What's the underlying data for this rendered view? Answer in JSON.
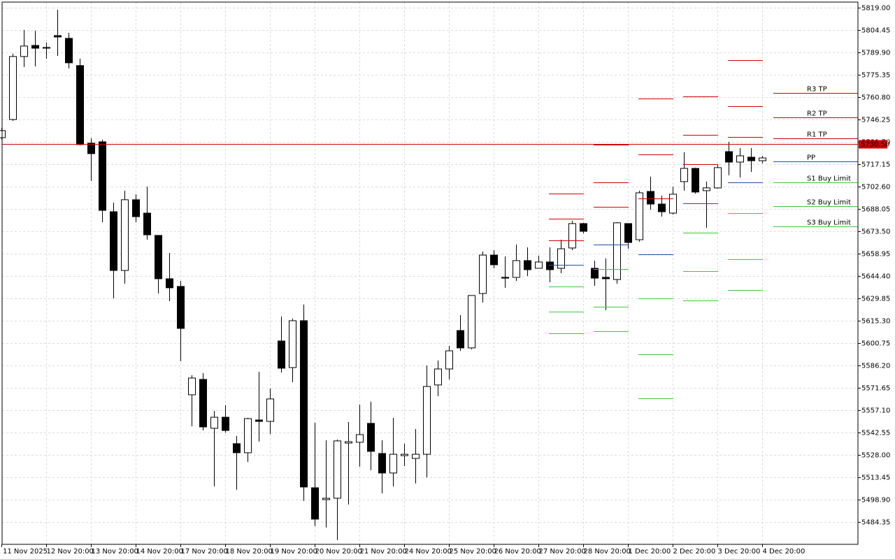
{
  "chart_data": {
    "type": "candlestick",
    "categories": [
      "11 Nov 2025",
      null,
      null,
      null,
      "12 Nov 20:00",
      null,
      null,
      null,
      "13 Nov 20:00",
      null,
      null,
      null,
      "14 Nov 20:00",
      null,
      null,
      null,
      "17 Nov 20:00",
      null,
      null,
      null,
      "18 Nov 20:00",
      null,
      null,
      null,
      "19 Nov 20:00",
      null,
      null,
      null,
      "20 Nov 20:00",
      null,
      null,
      null,
      "21 Nov 20:00",
      null,
      null,
      null,
      "24 Nov 20:00",
      null,
      null,
      null,
      "25 Nov 20:00",
      null,
      null,
      null,
      "26 Nov 20:00",
      null,
      null,
      null,
      "27 Nov 20:00",
      null,
      null,
      null,
      "28 Nov 20:00",
      null,
      null,
      null,
      "1 Dec 20:00",
      null,
      null,
      null,
      "2 Dec 20:00",
      null,
      null,
      null,
      "3 Dec 20:00",
      null,
      null,
      null,
      "4 Dec 20:00"
    ],
    "open": [
      5734.4,
      5746.2,
      5787.2,
      5794.4,
      5792.6,
      5800.8,
      5799.0,
      5781.3,
      5730.8,
      5731.7,
      5686.2,
      5648.0,
      5694.0,
      5685.3,
      5670.8,
      5642.6,
      5637.6,
      5567.1,
      5577.1,
      5545.3,
      5552.5,
      5535.3,
      5529.4,
      5550.7,
      5549.8,
      5602.1,
      5584.8,
      5615.3,
      5506.6,
      5498.9,
      5499.8,
      5535.7,
      5536.2,
      5548.5,
      5528.9,
      5516.2,
      5527.5,
      5525.7,
      5528.4,
      5573.5,
      5583.9,
      5608.9,
      5597.6,
      5633.0,
      5658.0,
      5643.5,
      5643.5,
      5654.4,
      5649.4,
      5653.5,
      5649.4,
      5662.6,
      5678.5,
      5649.4,
      5643.5,
      5642.1,
      5678.5,
      5668.0,
      5699.4,
      5691.2,
      5685.3,
      5705.8,
      5714.4,
      5699.9,
      5701.7,
      5725.3,
      5718.5,
      5721.7,
      5719.4
    ],
    "high": [
      5740.8,
      5789.0,
      5804.4,
      5804.0,
      5796.3,
      5817.6,
      5802.6,
      5785.8,
      5734.0,
      5733.1,
      5692.1,
      5699.9,
      5697.6,
      5702.6,
      5670.8,
      5659.4,
      5641.2,
      5579.8,
      5581.2,
      5556.6,
      5560.3,
      5540.3,
      5552.1,
      5582.1,
      5571.2,
      5618.0,
      5616.7,
      5625.8,
      5548.9,
      5537.5,
      5538.0,
      5549.4,
      5560.7,
      5562.6,
      5537.5,
      5552.1,
      5535.3,
      5544.8,
      5586.2,
      5589.4,
      5598.9,
      5618.9,
      5631.7,
      5660.3,
      5661.2,
      5657.1,
      5664.9,
      5663.0,
      5657.6,
      5663.0,
      5668.0,
      5680.3,
      5679.0,
      5654.4,
      5655.8,
      5679.4,
      5678.5,
      5699.9,
      5709.0,
      5696.7,
      5702.6,
      5724.9,
      5714.9,
      5705.8,
      5716.7,
      5731.7,
      5727.6,
      5727.6,
      5722.6
    ],
    "low": [
      5733.1,
      5745.3,
      5780.4,
      5780.8,
      5785.8,
      5787.6,
      5779.4,
      5729.4,
      5706.2,
      5679.4,
      5629.8,
      5639.4,
      5679.4,
      5668.0,
      5633.0,
      5628.0,
      5588.9,
      5546.6,
      5543.9,
      5507.5,
      5542.5,
      5505.3,
      5523.4,
      5536.6,
      5541.6,
      5581.6,
      5575.3,
      5498.0,
      5481.6,
      5480.7,
      5472.5,
      5495.7,
      5520.3,
      5518.0,
      5503.0,
      5507.5,
      5520.7,
      5509.4,
      5513.4,
      5566.2,
      5577.1,
      5595.7,
      5596.7,
      5627.1,
      5649.4,
      5636.7,
      5641.2,
      5644.4,
      5649.4,
      5640.3,
      5646.2,
      5661.2,
      5672.1,
      5638.0,
      5622.1,
      5639.4,
      5662.1,
      5666.7,
      5687.6,
      5683.0,
      5684.4,
      5699.9,
      5698.0,
      5675.8,
      5701.2,
      5709.9,
      5708.5,
      5712.1,
      5717.6
    ],
    "close": [
      5739.0,
      5787.2,
      5794.0,
      5792.6,
      5793.1,
      5799.9,
      5783.1,
      5729.9,
      5724.0,
      5687.1,
      5648.0,
      5694.0,
      5683.0,
      5671.2,
      5642.6,
      5636.7,
      5610.3,
      5578.0,
      5546.2,
      5552.5,
      5543.9,
      5529.4,
      5551.6,
      5549.8,
      5564.4,
      5584.4,
      5615.3,
      5507.1,
      5486.2,
      5499.8,
      5537.1,
      5536.6,
      5541.2,
      5530.3,
      5516.2,
      5528.4,
      5528.4,
      5528.4,
      5572.5,
      5583.9,
      5595.7,
      5597.6,
      5631.7,
      5658.0,
      5651.7,
      5643.0,
      5654.4,
      5648.5,
      5653.5,
      5648.5,
      5662.1,
      5678.5,
      5673.5,
      5643.0,
      5642.6,
      5679.0,
      5666.2,
      5698.5,
      5691.2,
      5686.2,
      5697.6,
      5714.4,
      5699.0,
      5701.7,
      5714.9,
      5718.5,
      5722.6,
      5719.4,
      5721.2
    ],
    "up_color": "#ffffff",
    "down_color": "#000000",
    "ylim": [
      5469.8,
      5822.6
    ],
    "yticks": [
      {
        "value": 5819.0,
        "label": "5819.00"
      },
      {
        "value": 5804.45,
        "label": "5804.45"
      },
      {
        "value": 5789.9,
        "label": "5789.90"
      },
      {
        "value": 5775.35,
        "label": "5775.35"
      },
      {
        "value": 5760.8,
        "label": "5760.80"
      },
      {
        "value": 5746.25,
        "label": "5746.25"
      },
      {
        "value": 5731.7,
        "label": "5731.70"
      },
      {
        "value": 5717.15,
        "label": "5717.15"
      },
      {
        "value": 5702.6,
        "label": "5702.60"
      },
      {
        "value": 5688.05,
        "label": "5688.05"
      },
      {
        "value": 5673.5,
        "label": "5673.50"
      },
      {
        "value": 5658.95,
        "label": "5658.95"
      },
      {
        "value": 5644.4,
        "label": "5644.40"
      },
      {
        "value": 5629.85,
        "label": "5629.85"
      },
      {
        "value": 5615.3,
        "label": "5615.30"
      },
      {
        "value": 5600.75,
        "label": "5600.75"
      },
      {
        "value": 5586.2,
        "label": "5586.20"
      },
      {
        "value": 5571.65,
        "label": "5571.65"
      },
      {
        "value": 5557.1,
        "label": "5557.10"
      },
      {
        "value": 5542.55,
        "label": "5542.55"
      },
      {
        "value": 5528.0,
        "label": "5528.00"
      },
      {
        "value": 5513.45,
        "label": "5513.45"
      },
      {
        "value": 5498.9,
        "label": "5498.90"
      },
      {
        "value": 5484.35,
        "label": "5484.35"
      }
    ],
    "grid": true,
    "current_price": {
      "value": 5730.5,
      "label": "5730.50",
      "color": "#cc0000"
    },
    "resistance_color": "#d40000",
    "pivot_color": "#1e50a0",
    "support_color": "#3cc83c",
    "pivot_days": [
      {
        "resistance": [
          5698.0,
          5681.7,
          5667.6
        ],
        "pivot": 5651.7,
        "support": [
          5637.6,
          5621.2,
          5607.1
        ]
      },
      {
        "resistance": [
          5729.9,
          5705.3,
          5689.4
        ],
        "pivot": 5664.9,
        "support": [
          5648.9,
          5624.4,
          5608.5
        ]
      },
      {
        "resistance": [
          5759.9,
          5723.5,
          5694.9
        ],
        "pivot": 5658.5,
        "support": [
          5629.8,
          5593.5,
          5564.8
        ]
      },
      {
        "resistance": [
          5761.3,
          5736.2,
          5717.1
        ],
        "pivot": 5691.7,
        "support": [
          5672.6,
          5647.6,
          5628.5
        ]
      },
      {
        "resistance": [
          5784.9,
          5754.9,
          5734.9
        ],
        "pivot": 5705.3,
        "support": [
          5685.3,
          5655.3,
          5635.3
        ]
      }
    ],
    "levels": [
      {
        "name": "R3 TP",
        "value": 5763.5,
        "color": "#d40000"
      },
      {
        "name": "R2 TP",
        "value": 5747.6,
        "color": "#d40000"
      },
      {
        "name": "R1 TP",
        "value": 5734.0,
        "color": "#d40000"
      },
      {
        "name": "PP",
        "value": 5719.0,
        "color": "#1e50a0"
      },
      {
        "name": "S1 Buy Limit",
        "value": 5705.3,
        "color": "#3cc83c"
      },
      {
        "name": "S2 Buy Limit",
        "value": 5689.9,
        "color": "#3cc83c"
      },
      {
        "name": "S3 Buy Limit",
        "value": 5676.7,
        "color": "#3cc83c"
      }
    ]
  }
}
